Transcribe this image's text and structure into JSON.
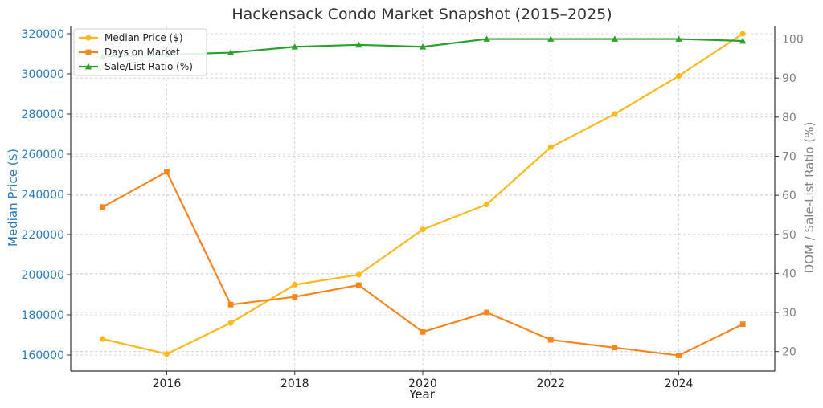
{
  "chart_data": {
    "type": "line",
    "title": "Hackensack Condo Market Snapshot (2015–2025)",
    "xlabel": "Year",
    "ylabel": "Median Price ($)",
    "y2label": "DOM / Sale-List Ratio (%)",
    "x": [
      2015,
      2016,
      2017,
      2018,
      2019,
      2020,
      2021,
      2022,
      2023,
      2024,
      2025
    ],
    "xticks": [
      "2016",
      "2018",
      "2020",
      "2022",
      "2024"
    ],
    "xlim": [
      2014.5,
      2025.5
    ],
    "ylim": [
      152000,
      324000
    ],
    "y2lim": [
      15,
      103.4
    ],
    "yticks": [
      "160000",
      "180000",
      "200000",
      "220000",
      "240000",
      "260000",
      "280000",
      "300000",
      "320000"
    ],
    "y2ticks": [
      "20",
      "30",
      "40",
      "50",
      "60",
      "70",
      "80",
      "90",
      "100"
    ],
    "grid": true,
    "legend_position": "top-left",
    "series": [
      {
        "name": "Median Price ($)",
        "axis": "left",
        "color": "#fbb91d",
        "marker": "circle",
        "values": [
          168000,
          160500,
          176000,
          195000,
          200000,
          222500,
          235000,
          263500,
          280000,
          299000,
          320000
        ]
      },
      {
        "name": "Days on Market",
        "axis": "right",
        "color": "#f5861f",
        "marker": "square",
        "values": [
          57,
          66,
          32,
          34,
          37,
          25,
          30,
          23,
          21,
          19,
          27
        ]
      },
      {
        "name": "Sale/List Ratio (%)",
        "axis": "right",
        "color": "#2ca02c",
        "marker": "triangle",
        "values": [
          95.5,
          96,
          96.5,
          98,
          98.5,
          98,
          100,
          100,
          100,
          100,
          99.5
        ]
      }
    ],
    "colors": {
      "left_axis": "#2a7ab8",
      "right_axis": "#808080",
      "grid": "#cccccc"
    }
  }
}
